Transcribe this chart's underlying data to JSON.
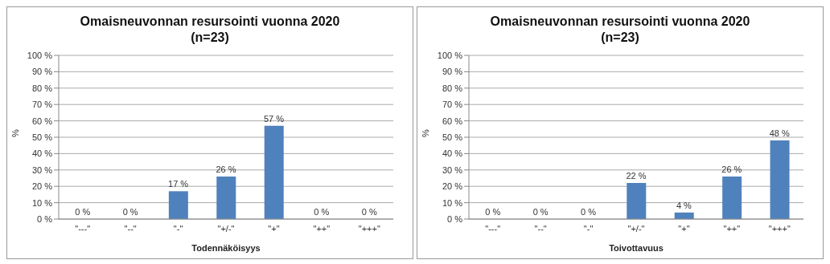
{
  "chart_data": [
    {
      "type": "bar",
      "title": "Omaisneuvonnan resursointi vuonna 2020",
      "subtitle": "(n=23)",
      "xlabel": "Todennäköisyys",
      "ylabel": "%",
      "categories": [
        "\"---\"",
        "\"--\"",
        "\"-\"",
        "\"+/-\"",
        "\"+\"",
        "\"++\"",
        "\"+++\""
      ],
      "values": [
        0,
        0,
        17,
        26,
        57,
        0,
        0
      ],
      "value_labels": [
        "0 %",
        "0 %",
        "17 %",
        "26 %",
        "57 %",
        "0 %",
        "0 %"
      ],
      "color": "#4f81bd",
      "ylim": [
        0,
        100
      ],
      "yticks": [
        {
          "value": 0,
          "label": "0 %"
        },
        {
          "value": 10,
          "label": "10 %"
        },
        {
          "value": 20,
          "label": "20 %"
        },
        {
          "value": 30,
          "label": "30 %"
        },
        {
          "value": 40,
          "label": "40 %"
        },
        {
          "value": 50,
          "label": "50 %"
        },
        {
          "value": 60,
          "label": "60 %"
        },
        {
          "value": 70,
          "label": "70 %"
        },
        {
          "value": 80,
          "label": "80 %"
        },
        {
          "value": 90,
          "label": "90 %"
        },
        {
          "value": 100,
          "label": "100 %"
        }
      ],
      "grid": "y",
      "legend": false
    },
    {
      "type": "bar",
      "title": "Omaisneuvonnan resursointi vuonna 2020",
      "subtitle": "(n=23)",
      "xlabel": "Toivottavuus",
      "ylabel": "%",
      "categories": [
        "\"---\"",
        "\"--\"",
        "\"-\"",
        "\"+/-\"",
        "\"+\"",
        "\"++\"",
        "\"+++\""
      ],
      "values": [
        0,
        0,
        0,
        22,
        4,
        26,
        48
      ],
      "value_labels": [
        "0 %",
        "0 %",
        "0 %",
        "22 %",
        "4 %",
        "26 %",
        "48 %"
      ],
      "color": "#4f81bd",
      "ylim": [
        0,
        100
      ],
      "yticks": [
        {
          "value": 0,
          "label": "0 %"
        },
        {
          "value": 10,
          "label": "10 %"
        },
        {
          "value": 20,
          "label": "20 %"
        },
        {
          "value": 30,
          "label": "30 %"
        },
        {
          "value": 40,
          "label": "40 %"
        },
        {
          "value": 50,
          "label": "50 %"
        },
        {
          "value": 60,
          "label": "60 %"
        },
        {
          "value": 70,
          "label": "70 %"
        },
        {
          "value": 80,
          "label": "80 %"
        },
        {
          "value": 90,
          "label": "90 %"
        },
        {
          "value": 100,
          "label": "100 %"
        }
      ],
      "grid": "y",
      "legend": false
    }
  ]
}
